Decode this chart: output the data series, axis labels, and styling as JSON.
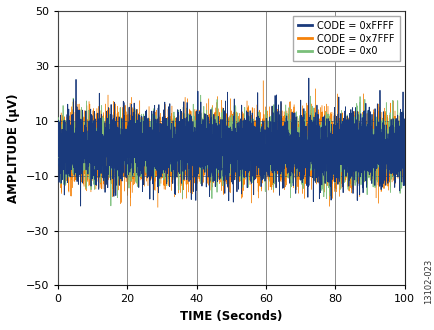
{
  "title": "",
  "xlabel": "TIME (Seconds)",
  "ylabel": "AMPLITUDE (μV)",
  "xlim": [
    0,
    100
  ],
  "ylim": [
    -50,
    50
  ],
  "xticks": [
    0,
    20,
    40,
    60,
    80,
    100
  ],
  "yticks": [
    -50,
    -30,
    -10,
    10,
    30,
    50
  ],
  "legend_labels": [
    "CODE = 0xFFFF",
    "CODE = 0x7FFF",
    "CODE = 0x0"
  ],
  "line_colors": [
    "#1a3a7c",
    "#f5820a",
    "#7abf7a"
  ],
  "noise_std_blue": 6.5,
  "noise_std_orange": 5.5,
  "noise_std_green": 6.0,
  "n_points_blue": 4000,
  "n_points_orange": 20000,
  "n_points_green": 4000,
  "seed": 42,
  "figure_id": "13102-023",
  "background_color": "#ffffff",
  "grid_color": "#555555",
  "grid_linewidth": 0.6
}
